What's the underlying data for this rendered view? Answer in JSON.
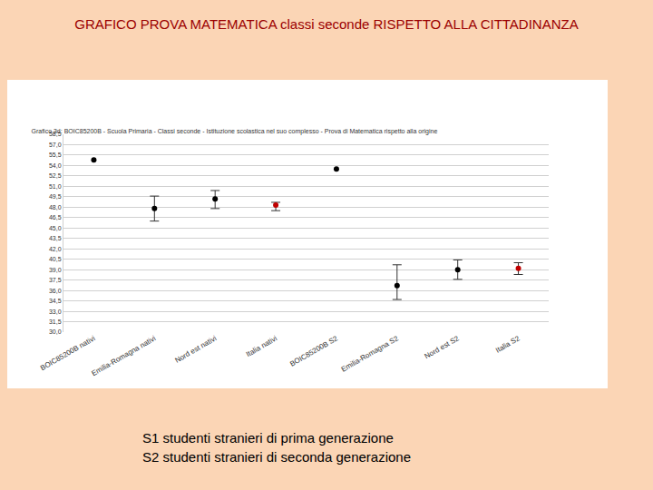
{
  "slide_title": "GRAFICO PROVA MATEMATICA classi seconde RISPETTO ALLA CITTADINANZA",
  "notes": [
    "S1 studenti stranieri di prima generazione",
    "S2 studenti stranieri di seconda generazione"
  ],
  "chart_data": {
    "type": "scatter",
    "title": "Grafico 3d: BOIC85200B - Scuola Primaria - Classi seconde - Istituzione scolastica nel suo complesso - Prova di Matematica rispetto alla origine",
    "categories": [
      "BOIC85200B nativi",
      "Emilia-Romagna nativi",
      "Nord est nativi",
      "Italia nativi",
      "BOIC85200B S2",
      "Emilia-Romagna S2",
      "Nord est S2",
      "Italia S2"
    ],
    "values": [
      54.8,
      47.8,
      49.2,
      48.3,
      53.5,
      36.7,
      39.0,
      39.2
    ],
    "error_low": [
      null,
      46.0,
      47.8,
      47.5,
      null,
      34.7,
      37.6,
      38.3
    ],
    "error_high": [
      null,
      49.6,
      50.4,
      48.7,
      null,
      39.7,
      40.4,
      40.0
    ],
    "colors": [
      "#000000",
      "#000000",
      "#000000",
      "#c00000",
      "#000000",
      "#000000",
      "#000000",
      "#c00000"
    ],
    "marker": "circle",
    "ylim": [
      30.0,
      58.5
    ],
    "yticks": [
      {
        "value": 30.0,
        "label": "30,0"
      },
      {
        "value": 31.5,
        "label": "31,5"
      },
      {
        "value": 33.0,
        "label": "33,0"
      },
      {
        "value": 34.5,
        "label": "34,5"
      },
      {
        "value": 36.0,
        "label": "36,0"
      },
      {
        "value": 37.5,
        "label": "37,5"
      },
      {
        "value": 39.0,
        "label": "39,0"
      },
      {
        "value": 40.5,
        "label": "40,5"
      },
      {
        "value": 42.0,
        "label": "42,0"
      },
      {
        "value": 43.5,
        "label": "43,5"
      },
      {
        "value": 45.0,
        "label": "45,0"
      },
      {
        "value": 46.5,
        "label": "46,5"
      },
      {
        "value": 48.0,
        "label": "48,0"
      },
      {
        "value": 49.5,
        "label": "49,5"
      },
      {
        "value": 51.0,
        "label": "51,0"
      },
      {
        "value": 52.5,
        "label": "52,5"
      },
      {
        "value": 54.0,
        "label": "54,0"
      },
      {
        "value": 55.5,
        "label": "55,5"
      },
      {
        "value": 57.0,
        "label": "57,0"
      },
      {
        "value": 58.5,
        "label": "58,5"
      }
    ],
    "grid": true
  }
}
